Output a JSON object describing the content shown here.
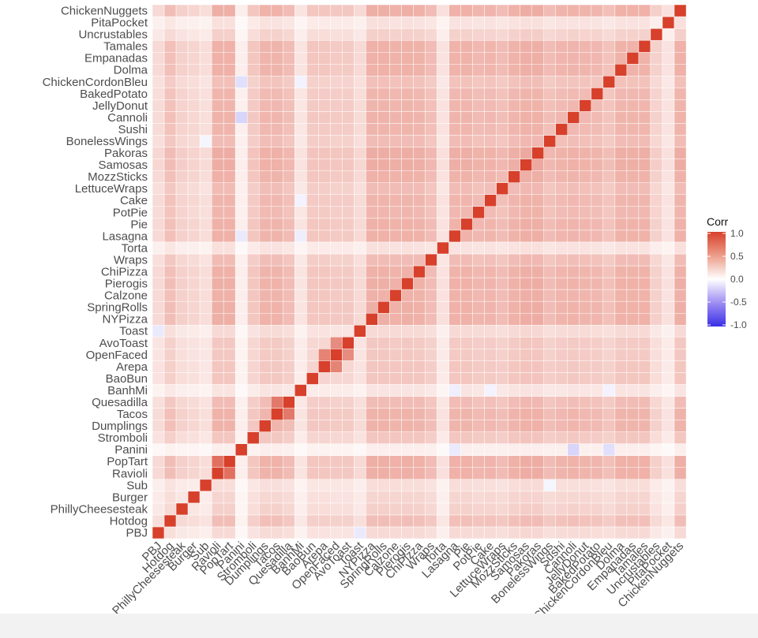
{
  "chart_data": {
    "type": "heatmap",
    "variables": [
      "PBJ",
      "Hotdog",
      "PhillyCheesesteak",
      "Burger",
      "Sub",
      "Ravioli",
      "PopTart",
      "Panini",
      "Stromboli",
      "Dumplings",
      "Tacos",
      "Quesadilla",
      "BanhMi",
      "BaoBun",
      "Arepa",
      "OpenFaced",
      "AvoToast",
      "Toast",
      "NYPizza",
      "SpringRolls",
      "Calzone",
      "Pierogis",
      "ChiPizza",
      "Wraps",
      "Torta",
      "Lasagna",
      "Pie",
      "PotPie",
      "Cake",
      "LettuceWraps",
      "MozzSticks",
      "Samosas",
      "Pakoras",
      "BonelessWings",
      "Sushi",
      "Cannoli",
      "JellyDonut",
      "BakedPotato",
      "ChickenCordonBleu",
      "Dolma",
      "Empanadas",
      "Tamales",
      "Uncrustables",
      "PitaPocket",
      "ChickenNuggets"
    ],
    "values_note": "",
    "legend": {
      "title": "Corr",
      "ticks": [
        "1.0",
        "0.5",
        "0.0",
        "-0.5",
        "-1.0"
      ],
      "range": [
        -1,
        1
      ],
      "colors": {
        "low": "#3a2ee8",
        "mid": "#ffffff",
        "high": "#d7402b"
      }
    },
    "row_base": [
      0.1,
      0.28,
      0.15,
      0.12,
      0.08,
      0.42,
      0.42,
      0.02,
      0.22,
      0.38,
      0.38,
      0.3,
      0.05,
      0.22,
      0.22,
      0.2,
      0.2,
      0.1,
      0.42,
      0.42,
      0.4,
      0.42,
      0.4,
      0.3,
      0.06,
      0.4,
      0.4,
      0.35,
      0.36,
      0.3,
      0.4,
      0.45,
      0.45,
      0.3,
      0.36,
      0.38,
      0.36,
      0.34,
      0.26,
      0.4,
      0.4,
      0.4,
      0.15,
      0.06,
      0.42
    ],
    "exceptions": [
      {
        "a": "Ravioli",
        "b": "PopTart",
        "value": 0.75
      },
      {
        "a": "Quesadilla",
        "b": "Tacos",
        "value": 0.7
      },
      {
        "a": "Arepa",
        "b": "OpenFaced",
        "value": 0.65
      },
      {
        "a": "AvoToast",
        "b": "OpenFaced",
        "value": 0.6
      },
      {
        "a": "Panini",
        "b": "Cannoli",
        "value": -0.2
      },
      {
        "a": "Panini",
        "b": "ChickenCordonBleu",
        "value": -0.15
      },
      {
        "a": "Panini",
        "b": "Lasagna",
        "value": -0.1
      },
      {
        "a": "BanhMi",
        "b": "Lasagna",
        "value": -0.08
      },
      {
        "a": "BanhMi",
        "b": "Cake",
        "value": -0.06
      },
      {
        "a": "BanhMi",
        "b": "ChickenCordonBleu",
        "value": -0.06
      },
      {
        "a": "Toast",
        "b": "PBJ",
        "value": -0.1
      },
      {
        "a": "Sub",
        "b": "BonelessWings",
        "value": -0.05
      },
      {
        "a": "PBJ",
        "b": "Toast",
        "value": -0.1
      }
    ]
  }
}
